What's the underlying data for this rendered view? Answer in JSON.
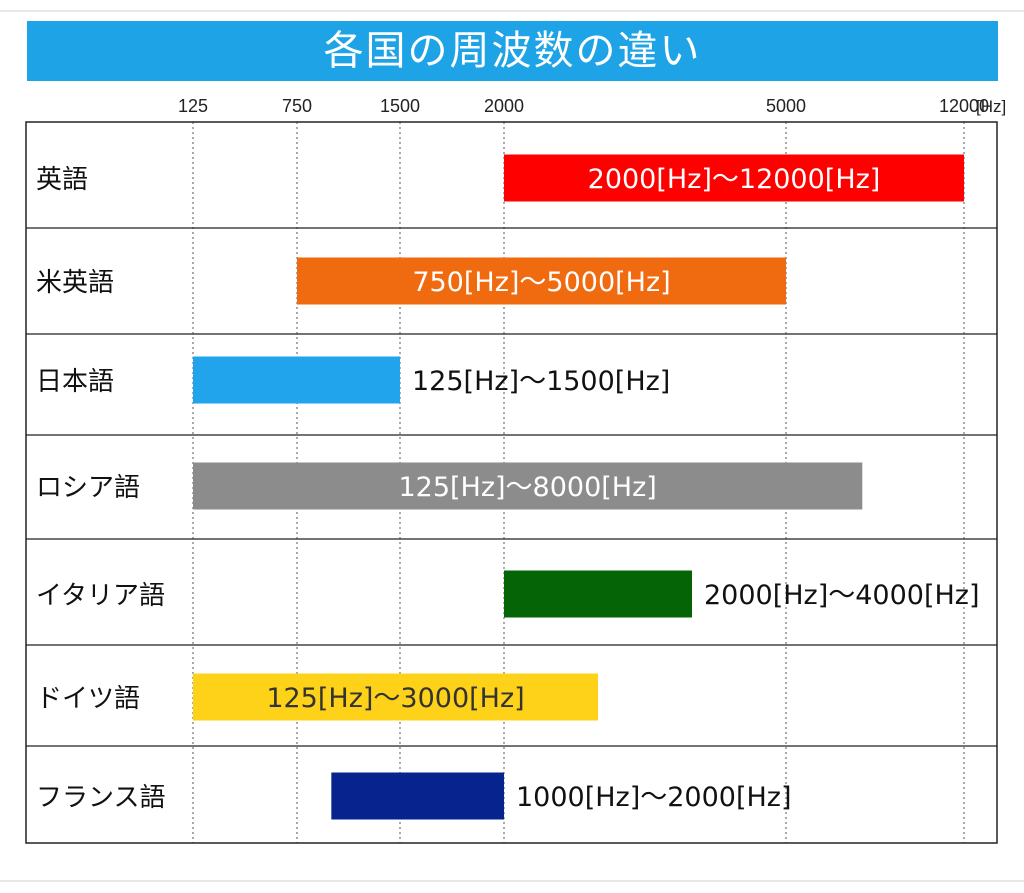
{
  "chart_data": {
    "type": "bar",
    "subtype": "range",
    "title": "各国の周波数の違い",
    "axis_unit": "[Hz]",
    "x_ticks": [
      125,
      750,
      1500,
      2000,
      5000,
      12000
    ],
    "x_tick_labels": [
      "125",
      "750",
      "1500",
      "2000",
      "5000",
      "12000"
    ],
    "categories": [
      "英語",
      "米英語",
      "日本語",
      "ロシア語",
      "イタリア語",
      "ドイツ語",
      "フランス語"
    ],
    "series": [
      {
        "ranges": [
          {
            "low": 2000,
            "high": 12000,
            "label": "2000[Hz]～12000[Hz]",
            "color": "#ff0000",
            "label_position": "inside",
            "label_color": "#ffffff"
          },
          {
            "low": 750,
            "high": 5000,
            "label": "750[Hz]～5000[Hz]",
            "color": "#f06a0f",
            "label_position": "inside",
            "label_color": "#ffffff"
          },
          {
            "low": 125,
            "high": 1500,
            "label": "125[Hz]～1500[Hz]",
            "color": "#22a4ec",
            "label_position": "outside",
            "label_color": "#111111"
          },
          {
            "low": 125,
            "high": 8000,
            "label": "125[Hz]～8000[Hz]",
            "color": "#8c8c8c",
            "label_position": "inside",
            "label_color": "#ffffff"
          },
          {
            "low": 2000,
            "high": 4000,
            "label": "2000[Hz]～4000[Hz]",
            "color": "#056406",
            "label_position": "outside",
            "label_color": "#111111"
          },
          {
            "low": 125,
            "high": 3000,
            "label": "125[Hz]～3000[Hz]",
            "color": "#ffd21a",
            "label_position": "inside",
            "label_color": "#333333"
          },
          {
            "low": 1000,
            "high": 2000,
            "label": "1000[Hz]～2000[Hz]",
            "color": "#06238e",
            "label_position": "outside",
            "label_color": "#111111"
          }
        ]
      }
    ],
    "grid": "vertical dotted at ticks"
  }
}
